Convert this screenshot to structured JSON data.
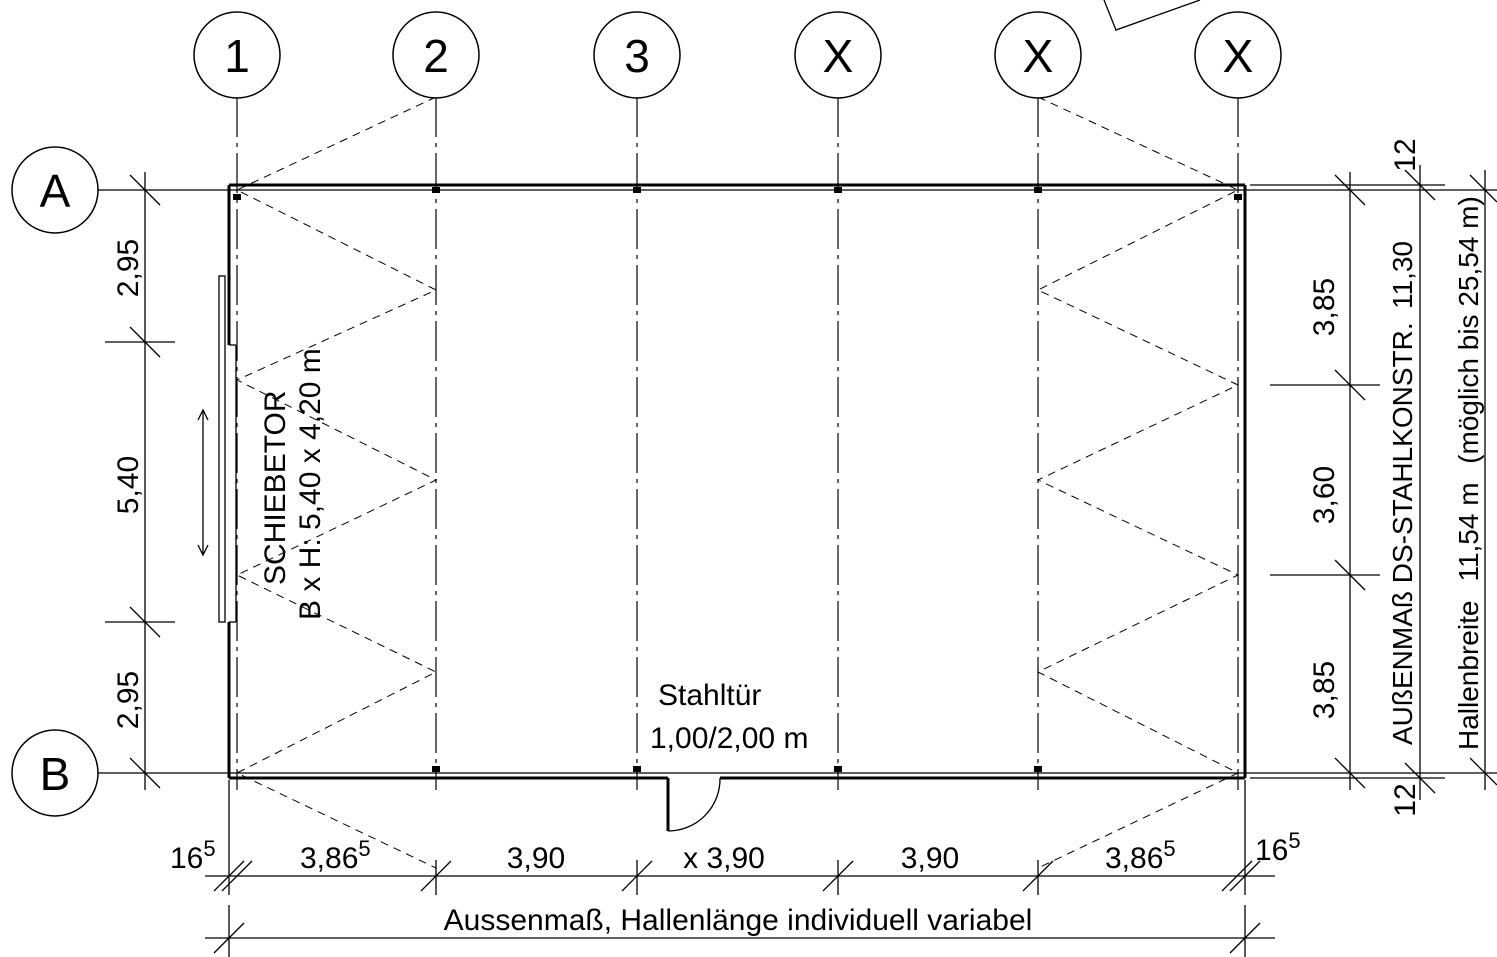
{
  "grid_columns": [
    "1",
    "2",
    "3",
    "X",
    "X",
    "X"
  ],
  "grid_rows": [
    "A",
    "B"
  ],
  "left_dimensions": [
    "2,95",
    "5,40",
    "2,95"
  ],
  "right_dimensions": [
    "3,85",
    "3,60",
    "3,85"
  ],
  "right_offsets": [
    "12",
    "12"
  ],
  "bottom_dimensions": {
    "edge_left": "16",
    "edge_left_sup": "5",
    "bays": [
      {
        "text": "3,86",
        "sup": "5"
      },
      {
        "text": "3,90",
        "sup": ""
      },
      {
        "text": "x 3,90",
        "sup": ""
      },
      {
        "text": "3,90",
        "sup": ""
      },
      {
        "text": "3,86",
        "sup": "5"
      }
    ],
    "edge_right": "16",
    "edge_right_sup": "5"
  },
  "gate": {
    "title": "SCHIEBETOR",
    "size": "B x H: 5,40 x 4,20 m"
  },
  "door": {
    "title": "Stahltür",
    "size": "1,00/2,00 m"
  },
  "outer_dim": {
    "label": "AUßENMAß  DS-STAHLKONSTR.",
    "value": "11,30"
  },
  "hall_width": {
    "label": "Hallenbreite",
    "value": "11,54 m",
    "note": "(möglich bis 25,54 m)"
  },
  "length_label": "Aussenmaß, Hallenlänge individuell variabel"
}
